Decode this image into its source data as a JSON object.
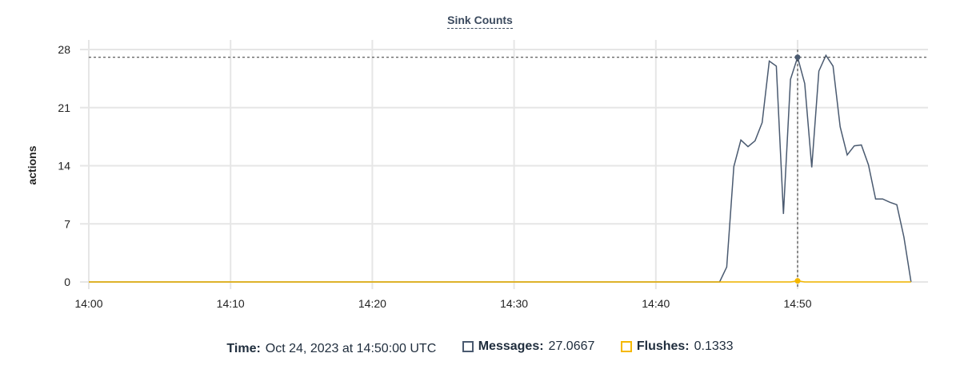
{
  "chart_data": {
    "type": "line",
    "title": "Sink Counts",
    "ylabel": "actions",
    "xlabel": "",
    "ylim": [
      0,
      28
    ],
    "yticks": [
      "0",
      "7",
      "14",
      "21",
      "28"
    ],
    "xticks": [
      "14:00",
      "14:10",
      "14:20",
      "14:30",
      "14:40",
      "14:50"
    ],
    "grid": true,
    "series": [
      {
        "name": "Messages",
        "color": "#4a5a70",
        "x": [
          "14:00",
          "14:44:30",
          "14:45",
          "14:45:30",
          "14:46",
          "14:46:30",
          "14:47",
          "14:47:30",
          "14:48",
          "14:48:30",
          "14:49",
          "14:49:30",
          "14:50",
          "14:50:30",
          "14:51",
          "14:51:30",
          "14:52",
          "14:52:30",
          "14:53",
          "14:53:30",
          "14:54",
          "14:54:30",
          "14:55",
          "14:55:30",
          "14:56",
          "14:56:30",
          "14:57",
          "14:57:30",
          "14:58"
        ],
        "y": [
          0,
          0,
          1.8,
          13.9,
          17.1,
          16.3,
          17.0,
          19.2,
          26.6,
          26.0,
          8.2,
          24.4,
          27.0667,
          23.9,
          13.8,
          25.4,
          27.3,
          26.0,
          18.7,
          15.3,
          16.4,
          16.5,
          14.1,
          10.0,
          10.0,
          9.6,
          9.3,
          5.4,
          0
        ]
      },
      {
        "name": "Flushes",
        "color": "#f5b800",
        "x": [
          "14:00",
          "14:49:30",
          "14:50",
          "14:50:30",
          "14:58"
        ],
        "y": [
          0,
          0,
          0.1333,
          0,
          0
        ]
      }
    ],
    "crosshair": {
      "x": "14:50"
    }
  },
  "legend": {
    "time_label": "Time:",
    "time_value": "Oct 24, 2023 at 14:50:00 UTC",
    "messages_label": "Messages:",
    "messages_value": "27.0667",
    "flushes_label": "Flushes:",
    "flushes_value": "0.1333"
  }
}
